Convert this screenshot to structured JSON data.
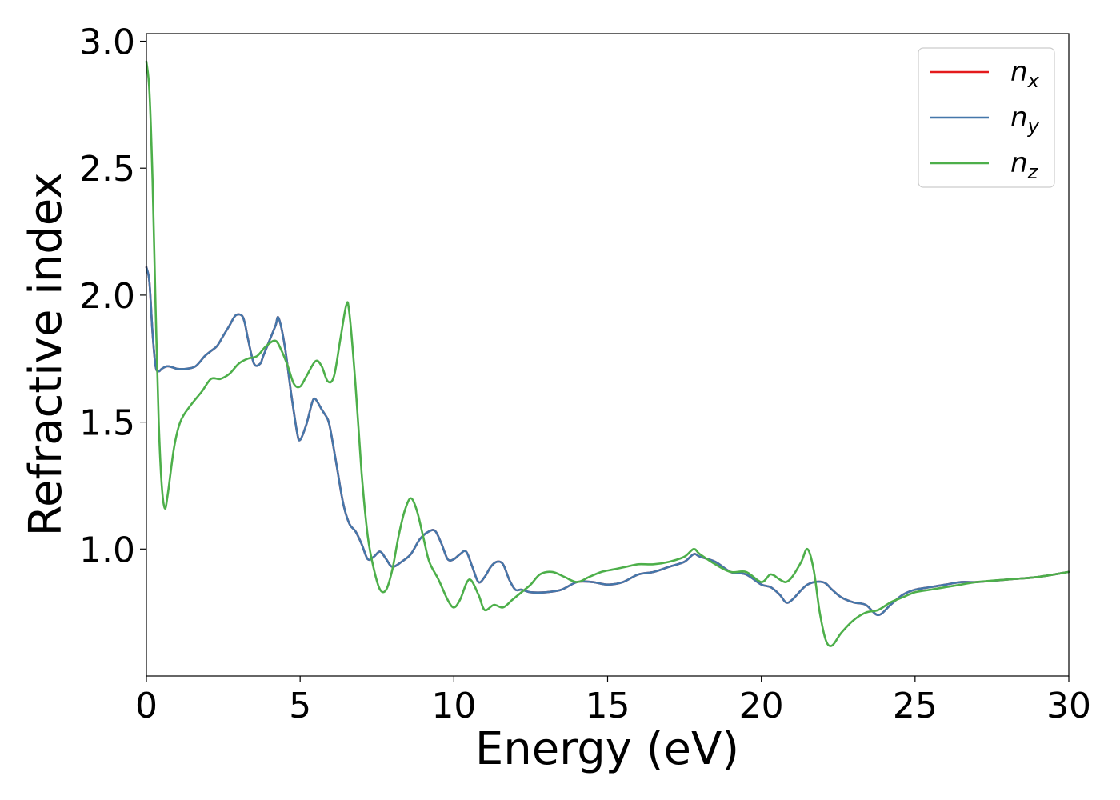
{
  "chart_data": {
    "type": "line",
    "title": "",
    "xlabel": "Energy (eV)",
    "ylabel": "Refractive index",
    "xlim": [
      0,
      30
    ],
    "ylim": [
      0.5,
      3.03
    ],
    "xticks": [
      0,
      5,
      10,
      15,
      20,
      25,
      30
    ],
    "xtick_labels": [
      "0",
      "5",
      "10",
      "15",
      "20",
      "25",
      "30"
    ],
    "yticks": [
      1.0,
      1.5,
      2.0,
      2.5,
      3.0
    ],
    "ytick_labels": [
      "1.0",
      "1.5",
      "2.0",
      "2.5",
      "3.0"
    ],
    "grid": false,
    "legend_position": "top-right",
    "series": [
      {
        "name": "n",
        "subscript": "x",
        "color": "#e41a1c",
        "x": [
          0,
          0.1,
          0.2,
          0.3,
          0.4,
          0.5,
          0.7,
          1.0,
          1.3,
          1.6,
          1.9,
          2.1,
          2.3,
          2.5,
          2.7,
          2.9,
          3.1,
          3.2,
          3.3,
          3.5,
          3.7,
          3.8,
          4.0,
          4.2,
          4.3,
          4.5,
          4.7,
          4.9,
          5.0,
          5.2,
          5.4,
          5.5,
          5.7,
          5.9,
          6.0,
          6.2,
          6.4,
          6.6,
          6.8,
          7.0,
          7.2,
          7.4,
          7.6,
          7.8,
          8.0,
          8.3,
          8.6,
          8.9,
          9.2,
          9.4,
          9.6,
          9.8,
          10.0,
          10.2,
          10.4,
          10.6,
          10.8,
          11.0,
          11.2,
          11.4,
          11.6,
          11.8,
          12.0,
          12.2,
          12.5,
          13.0,
          13.5,
          14.0,
          14.5,
          15.0,
          15.5,
          16.0,
          16.5,
          17.0,
          17.5,
          17.8,
          18.0,
          18.5,
          19.0,
          19.5,
          20.0,
          20.3,
          20.6,
          20.8,
          21.0,
          21.5,
          22.0,
          22.3,
          22.6,
          23.0,
          23.4,
          23.8,
          24.2,
          24.6,
          25.0,
          25.5,
          26.0,
          26.5,
          27.0,
          28.0,
          29.0,
          30.0
        ],
        "y": [
          2.11,
          2.05,
          1.85,
          1.72,
          1.7,
          1.71,
          1.72,
          1.71,
          1.71,
          1.72,
          1.76,
          1.78,
          1.8,
          1.84,
          1.88,
          1.92,
          1.92,
          1.89,
          1.83,
          1.73,
          1.73,
          1.76,
          1.82,
          1.88,
          1.91,
          1.8,
          1.62,
          1.46,
          1.43,
          1.49,
          1.58,
          1.59,
          1.55,
          1.51,
          1.46,
          1.32,
          1.18,
          1.1,
          1.07,
          1.02,
          0.96,
          0.97,
          0.99,
          0.96,
          0.93,
          0.95,
          0.98,
          1.04,
          1.07,
          1.07,
          1.02,
          0.96,
          0.96,
          0.98,
          0.99,
          0.93,
          0.87,
          0.89,
          0.93,
          0.95,
          0.94,
          0.88,
          0.84,
          0.84,
          0.83,
          0.83,
          0.84,
          0.87,
          0.87,
          0.86,
          0.87,
          0.9,
          0.91,
          0.93,
          0.95,
          0.98,
          0.97,
          0.95,
          0.91,
          0.9,
          0.86,
          0.85,
          0.82,
          0.79,
          0.8,
          0.86,
          0.87,
          0.84,
          0.81,
          0.79,
          0.78,
          0.74,
          0.78,
          0.82,
          0.84,
          0.85,
          0.86,
          0.87,
          0.87,
          0.88,
          0.89,
          0.91
        ]
      },
      {
        "name": "n",
        "subscript": "y",
        "color": "#4477aa",
        "x": [
          0,
          0.1,
          0.2,
          0.3,
          0.4,
          0.5,
          0.7,
          1.0,
          1.3,
          1.6,
          1.9,
          2.1,
          2.3,
          2.5,
          2.7,
          2.9,
          3.1,
          3.2,
          3.3,
          3.5,
          3.7,
          3.8,
          4.0,
          4.2,
          4.3,
          4.5,
          4.7,
          4.9,
          5.0,
          5.2,
          5.4,
          5.5,
          5.7,
          5.9,
          6.0,
          6.2,
          6.4,
          6.6,
          6.8,
          7.0,
          7.2,
          7.4,
          7.6,
          7.8,
          8.0,
          8.3,
          8.6,
          8.9,
          9.2,
          9.4,
          9.6,
          9.8,
          10.0,
          10.2,
          10.4,
          10.6,
          10.8,
          11.0,
          11.2,
          11.4,
          11.6,
          11.8,
          12.0,
          12.2,
          12.5,
          13.0,
          13.5,
          14.0,
          14.5,
          15.0,
          15.5,
          16.0,
          16.5,
          17.0,
          17.5,
          17.8,
          18.0,
          18.5,
          19.0,
          19.5,
          20.0,
          20.3,
          20.6,
          20.8,
          21.0,
          21.5,
          22.0,
          22.3,
          22.6,
          23.0,
          23.4,
          23.8,
          24.2,
          24.6,
          25.0,
          25.5,
          26.0,
          26.5,
          27.0,
          28.0,
          29.0,
          30.0
        ],
        "y": [
          2.11,
          2.05,
          1.85,
          1.72,
          1.7,
          1.71,
          1.72,
          1.71,
          1.71,
          1.72,
          1.76,
          1.78,
          1.8,
          1.84,
          1.88,
          1.92,
          1.92,
          1.89,
          1.83,
          1.73,
          1.73,
          1.76,
          1.82,
          1.88,
          1.91,
          1.8,
          1.62,
          1.46,
          1.43,
          1.49,
          1.58,
          1.59,
          1.55,
          1.51,
          1.46,
          1.32,
          1.18,
          1.1,
          1.07,
          1.02,
          0.96,
          0.97,
          0.99,
          0.96,
          0.93,
          0.95,
          0.98,
          1.04,
          1.07,
          1.07,
          1.02,
          0.96,
          0.96,
          0.98,
          0.99,
          0.93,
          0.87,
          0.89,
          0.93,
          0.95,
          0.94,
          0.88,
          0.84,
          0.84,
          0.83,
          0.83,
          0.84,
          0.87,
          0.87,
          0.86,
          0.87,
          0.9,
          0.91,
          0.93,
          0.95,
          0.98,
          0.97,
          0.95,
          0.91,
          0.9,
          0.86,
          0.85,
          0.82,
          0.79,
          0.8,
          0.86,
          0.87,
          0.84,
          0.81,
          0.79,
          0.78,
          0.74,
          0.78,
          0.82,
          0.84,
          0.85,
          0.86,
          0.87,
          0.87,
          0.88,
          0.89,
          0.91
        ]
      },
      {
        "name": "n",
        "subscript": "z",
        "color": "#4daf4a",
        "x": [
          0,
          0.1,
          0.2,
          0.3,
          0.4,
          0.5,
          0.6,
          0.7,
          0.9,
          1.1,
          1.4,
          1.8,
          2.1,
          2.4,
          2.7,
          3.0,
          3.3,
          3.6,
          3.9,
          4.2,
          4.4,
          4.6,
          4.8,
          5.0,
          5.2,
          5.5,
          5.7,
          5.9,
          6.1,
          6.3,
          6.5,
          6.6,
          6.8,
          7.0,
          7.2,
          7.4,
          7.6,
          7.8,
          8.0,
          8.2,
          8.4,
          8.6,
          8.8,
          9.0,
          9.2,
          9.5,
          9.8,
          10.0,
          10.2,
          10.5,
          10.8,
          11.0,
          11.3,
          11.6,
          11.9,
          12.2,
          12.5,
          12.8,
          13.2,
          13.6,
          14.0,
          14.4,
          14.8,
          15.2,
          15.6,
          16.0,
          16.5,
          17.0,
          17.5,
          17.8,
          18.0,
          18.5,
          19.0,
          19.5,
          20.0,
          20.3,
          20.6,
          20.8,
          21.0,
          21.3,
          21.5,
          21.7,
          21.9,
          22.1,
          22.3,
          22.6,
          23.0,
          23.4,
          23.8,
          24.2,
          24.6,
          25.0,
          25.5,
          26.0,
          26.5,
          27.0,
          28.0,
          29.0,
          30.0
        ],
        "y": [
          2.92,
          2.8,
          2.45,
          1.95,
          1.5,
          1.25,
          1.16,
          1.22,
          1.4,
          1.5,
          1.56,
          1.62,
          1.67,
          1.67,
          1.69,
          1.73,
          1.75,
          1.76,
          1.8,
          1.82,
          1.78,
          1.72,
          1.65,
          1.64,
          1.68,
          1.74,
          1.72,
          1.66,
          1.68,
          1.82,
          1.96,
          1.93,
          1.65,
          1.3,
          1.05,
          0.92,
          0.84,
          0.84,
          0.92,
          1.05,
          1.15,
          1.2,
          1.15,
          1.05,
          0.95,
          0.88,
          0.8,
          0.77,
          0.8,
          0.88,
          0.82,
          0.76,
          0.78,
          0.77,
          0.8,
          0.83,
          0.86,
          0.9,
          0.91,
          0.89,
          0.87,
          0.89,
          0.91,
          0.92,
          0.93,
          0.94,
          0.94,
          0.95,
          0.97,
          1.0,
          0.98,
          0.94,
          0.91,
          0.91,
          0.87,
          0.9,
          0.88,
          0.87,
          0.89,
          0.95,
          1.0,
          0.92,
          0.75,
          0.64,
          0.62,
          0.67,
          0.72,
          0.75,
          0.76,
          0.79,
          0.81,
          0.83,
          0.84,
          0.85,
          0.86,
          0.87,
          0.88,
          0.89,
          0.91
        ]
      }
    ]
  }
}
